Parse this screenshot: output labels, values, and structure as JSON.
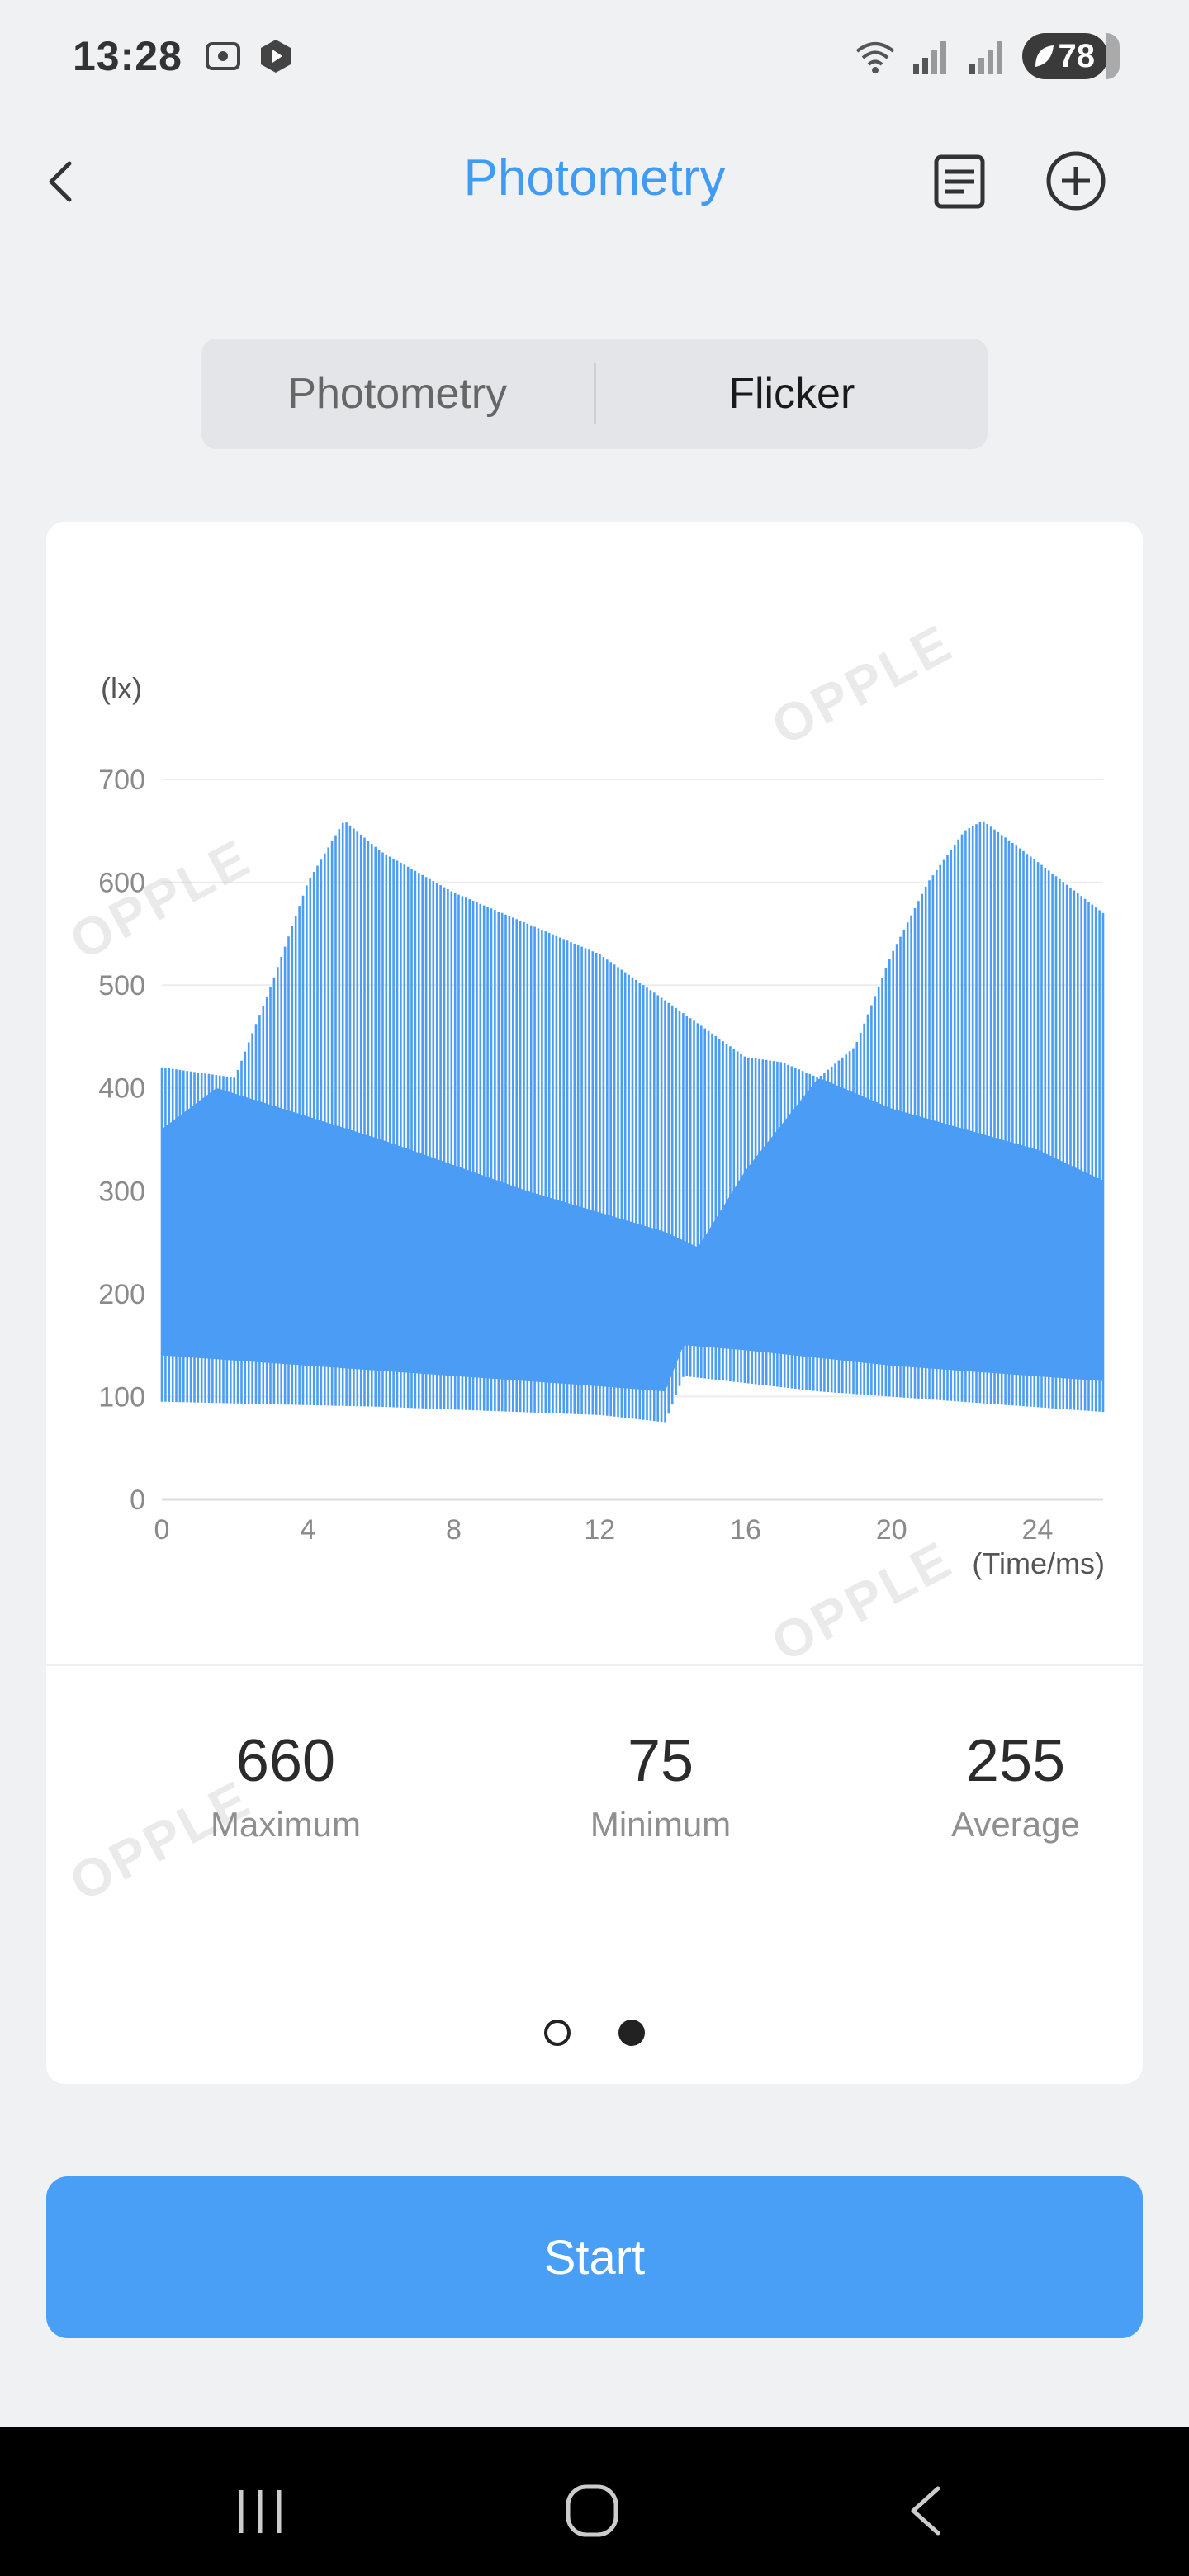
{
  "status_bar": {
    "time": "13:28",
    "battery": "78"
  },
  "header": {
    "title": "Photometry"
  },
  "segmented": {
    "tab_photometry": "Photometry",
    "tab_flicker": "Flicker"
  },
  "watermark_text": "OPPLE",
  "chart_data": {
    "type": "area",
    "ylabel": "(lx)",
    "xlabel": "(Time/ms)",
    "ylim": [
      0,
      700
    ],
    "xlim": [
      0,
      25.8
    ],
    "y_ticks": [
      "0",
      "100",
      "200",
      "300",
      "400",
      "500",
      "600",
      "700"
    ],
    "x_ticks": [
      "0",
      "4",
      "8",
      "12",
      "16",
      "20",
      "24"
    ],
    "grid": "horizontal",
    "color": "#4a9cf5",
    "series": [
      {
        "role": "upper envelope",
        "x": [
          0,
          2,
          3,
          4,
          5,
          6,
          8,
          10,
          12,
          14,
          16,
          17,
          18,
          19,
          20,
          21,
          22,
          22.5,
          24,
          25.8
        ],
        "y": [
          420,
          410,
          500,
          600,
          660,
          630,
          590,
          560,
          530,
          480,
          430,
          425,
          410,
          440,
          530,
          600,
          650,
          660,
          620,
          570
        ]
      },
      {
        "role": "lower peak envelope",
        "x": [
          0,
          1.5,
          6,
          10,
          13.8,
          14.7,
          16,
          18,
          20,
          24,
          25.8
        ],
        "y": [
          360,
          400,
          350,
          300,
          260,
          245,
          320,
          410,
          380,
          340,
          310
        ]
      },
      {
        "role": "upper trough envelope",
        "x": [
          0,
          4,
          8,
          12,
          13.8,
          14.3,
          16,
          20,
          25.8
        ],
        "y": [
          140,
          130,
          120,
          110,
          105,
          150,
          145,
          130,
          115
        ]
      },
      {
        "role": "lower envelope",
        "x": [
          0,
          6,
          12,
          13.8,
          14.3,
          18,
          25.8
        ],
        "y": [
          95,
          90,
          82,
          75,
          120,
          105,
          85
        ]
      }
    ]
  },
  "stats": [
    {
      "value": "660",
      "label": "Maximum"
    },
    {
      "value": "75",
      "label": "Minimum"
    },
    {
      "value": "255",
      "label": "Average"
    }
  ],
  "start_button": {
    "label": "Start"
  }
}
